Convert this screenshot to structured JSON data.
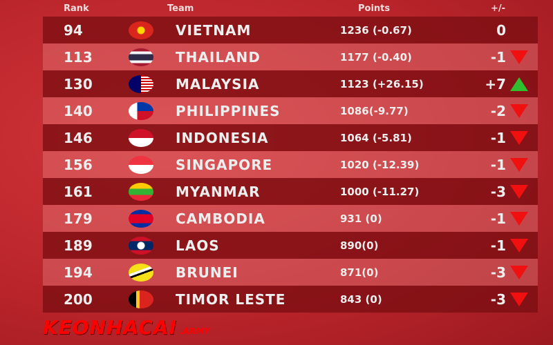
{
  "header": {
    "rank": "Rank",
    "team": "Team",
    "points": "Points",
    "change": "+/-"
  },
  "logo": {
    "text": "KEONHACAI",
    "sub": ".ARMY"
  },
  "colors": {
    "up": "#2fbf2f",
    "down": "#f01010"
  },
  "rows": [
    {
      "rank": "94",
      "team": "VIETNAM",
      "points": "1236 (-0.67)",
      "change": "0",
      "trend": "none",
      "flag": "vietnam-flag"
    },
    {
      "rank": "113",
      "team": "THAILAND",
      "points": "1177 (-0.40)",
      "change": "-1",
      "trend": "down",
      "flag": "thailand-flag"
    },
    {
      "rank": "130",
      "team": "MALAYSIA",
      "points": "1123 (+26.15)",
      "change": "+7",
      "trend": "up",
      "flag": "malaysia-flag"
    },
    {
      "rank": "140",
      "team": "PHILIPPINES",
      "points": "1086(-9.77)",
      "change": "-2",
      "trend": "down",
      "flag": "philippines-flag"
    },
    {
      "rank": "146",
      "team": "INDONESIA",
      "points": "1064 (-5.81)",
      "change": "-1",
      "trend": "down",
      "flag": "indonesia-flag"
    },
    {
      "rank": "156",
      "team": "SINGAPORE",
      "points": "1020 (-12.39)",
      "change": "-1",
      "trend": "down",
      "flag": "singapore-flag"
    },
    {
      "rank": "161",
      "team": "MYANMAR",
      "points": "1000 (-11.27)",
      "change": "-3",
      "trend": "down",
      "flag": "myanmar-flag"
    },
    {
      "rank": "179",
      "team": "CAMBODIA",
      "points": "931 (0)",
      "change": "-1",
      "trend": "down",
      "flag": "cambodia-flag"
    },
    {
      "rank": "189",
      "team": "LAOS",
      "points": "890(0)",
      "change": "-1",
      "trend": "down",
      "flag": "laos-flag"
    },
    {
      "rank": "194",
      "team": "BRUNEI",
      "points": "871(0)",
      "change": "-3",
      "trend": "down",
      "flag": "brunei-flag"
    },
    {
      "rank": "200",
      "team": "TIMOR LESTE",
      "points": "843 (0)",
      "change": "-3",
      "trend": "down",
      "flag": "timor-leste-flag"
    }
  ]
}
